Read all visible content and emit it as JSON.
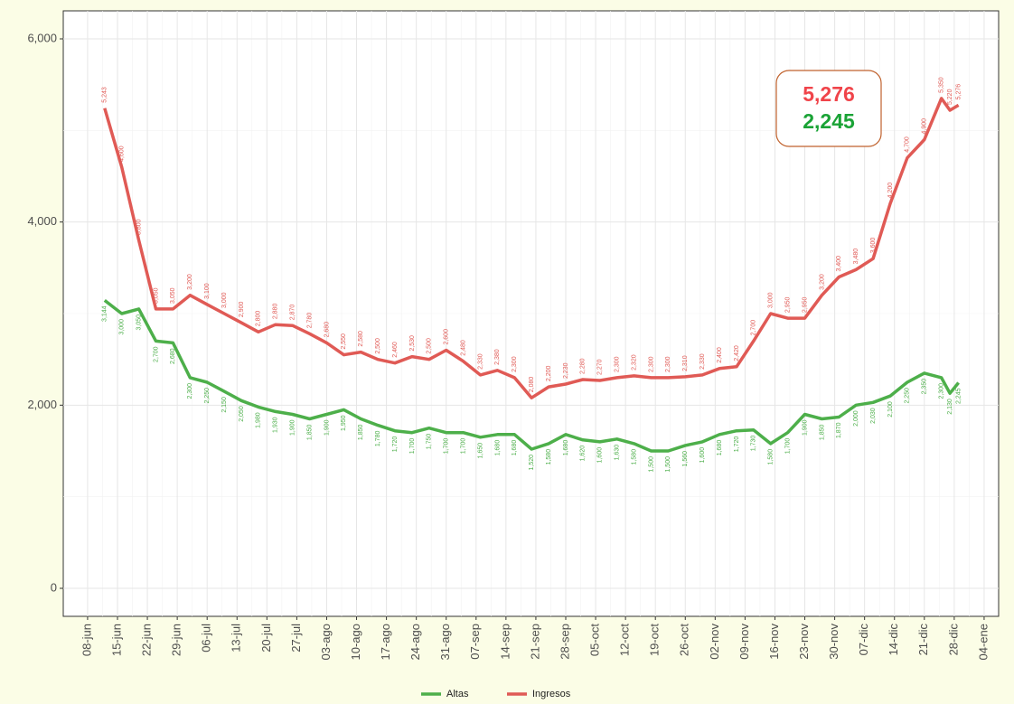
{
  "chart_data": {
    "type": "line",
    "xlim": [
      -5.7,
      213.4
    ],
    "ylim": [
      -306,
      6306
    ],
    "grid": true,
    "legend": "bottom",
    "xticks": [
      {
        "value": 0,
        "label": "08-jun"
      },
      {
        "value": 7,
        "label": "15-jun"
      },
      {
        "value": 14,
        "label": "22-jun"
      },
      {
        "value": 21,
        "label": "29-jun"
      },
      {
        "value": 28,
        "label": "06-jul"
      },
      {
        "value": 35,
        "label": "13-jul"
      },
      {
        "value": 42,
        "label": "20-jul"
      },
      {
        "value": 49,
        "label": "27-jul"
      },
      {
        "value": 56,
        "label": "03-ago"
      },
      {
        "value": 63,
        "label": "10-ago"
      },
      {
        "value": 70,
        "label": "17-ago"
      },
      {
        "value": 77,
        "label": "24-ago"
      },
      {
        "value": 84,
        "label": "31-ago"
      },
      {
        "value": 91,
        "label": "07-sep"
      },
      {
        "value": 98,
        "label": "14-sep"
      },
      {
        "value": 105,
        "label": "21-sep"
      },
      {
        "value": 112,
        "label": "28-sep"
      },
      {
        "value": 119,
        "label": "05-oct"
      },
      {
        "value": 126,
        "label": "12-oct"
      },
      {
        "value": 133,
        "label": "19-oct"
      },
      {
        "value": 140,
        "label": "26-oct"
      },
      {
        "value": 147,
        "label": "02-nov"
      },
      {
        "value": 154,
        "label": "09-nov"
      },
      {
        "value": 161,
        "label": "16-nov"
      },
      {
        "value": 168,
        "label": "23-nov"
      },
      {
        "value": 175,
        "label": "30-nov"
      },
      {
        "value": 182,
        "label": "07-dic"
      },
      {
        "value": 189,
        "label": "14-dic"
      },
      {
        "value": 196,
        "label": "21-dic"
      },
      {
        "value": 203,
        "label": "28-dic"
      },
      {
        "value": 210,
        "label": "04-ene"
      }
    ],
    "yticks": [
      0,
      {
        "value": 2000,
        "label": "2,000"
      },
      {
        "value": 4000,
        "label": "4,000"
      },
      {
        "value": 6000,
        "label": "6,000"
      }
    ],
    "x": [
      4,
      8,
      12,
      16,
      20,
      24,
      28,
      32,
      36,
      40,
      44,
      48,
      52,
      56,
      60,
      64,
      68,
      72,
      76,
      80,
      84,
      88,
      92,
      96,
      100,
      104,
      108,
      112,
      116,
      120,
      124,
      128,
      132,
      136,
      140,
      144,
      148,
      152,
      156,
      160,
      164,
      168,
      172,
      176,
      180,
      184,
      188,
      192,
      196,
      200,
      202,
      204
    ],
    "series": [
      {
        "name": "Altas",
        "color": "#4daf4a",
        "values": [
          3144,
          3000,
          3050,
          2700,
          2680,
          2300,
          2250,
          2150,
          2050,
          1980,
          1930,
          1900,
          1850,
          1900,
          1950,
          1850,
          1780,
          1720,
          1700,
          1750,
          1700,
          1700,
          1650,
          1680,
          1680,
          1520,
          1580,
          1680,
          1620,
          1600,
          1630,
          1580,
          1500,
          1500,
          1560,
          1600,
          1680,
          1720,
          1730,
          1580,
          1700,
          1900,
          1850,
          1870,
          2000,
          2030,
          2100,
          2250,
          2350,
          2300,
          2130,
          2245
        ],
        "value_labels": [
          "3,144",
          "3,000",
          "3,050",
          "2,700",
          "2,680",
          "2,300",
          "2,250",
          "2,150",
          "2,050",
          "1,980",
          "1,930",
          "1,900",
          "1,850",
          "1,900",
          "1,950",
          "1,850",
          "1,780",
          "1,720",
          "1,700",
          "1,750",
          "1,700",
          "1,700",
          "1,650",
          "1,680",
          "1,680",
          "1,520",
          "1,580",
          "1,680",
          "1,620",
          "1,600",
          "1,630",
          "1,580",
          "1,500",
          "1,500",
          "1,560",
          "1,600",
          "1,680",
          "1,720",
          "1,730",
          "1,580",
          "1,700",
          "1,900",
          "1,850",
          "1,870",
          "2,000",
          "2,030",
          "2,100",
          "2,250",
          "2,350",
          "2,300",
          "2,130",
          "2,245"
        ]
      },
      {
        "name": "Ingresos",
        "color": "#e05a55",
        "values": [
          5243,
          4600,
          3800,
          3050,
          3050,
          3200,
          3100,
          3000,
          2900,
          2800,
          2880,
          2870,
          2780,
          2680,
          2550,
          2580,
          2500,
          2460,
          2530,
          2500,
          2600,
          2480,
          2330,
          2380,
          2300,
          2080,
          2200,
          2230,
          2280,
          2270,
          2300,
          2320,
          2300,
          2300,
          2310,
          2330,
          2400,
          2420,
          2700,
          3000,
          2950,
          2950,
          3200,
          3400,
          3480,
          3600,
          4200,
          4700,
          4900,
          5350,
          5220,
          5276
        ],
        "value_labels": [
          "5,243",
          "4,600",
          "3,800",
          "3,050",
          "3,050",
          "3,200",
          "3,100",
          "3,000",
          "2,900",
          "2,800",
          "2,880",
          "2,870",
          "2,780",
          "2,680",
          "2,550",
          "2,580",
          "2,500",
          "2,460",
          "2,530",
          "2,500",
          "2,600",
          "2,480",
          "2,330",
          "2,380",
          "2,300",
          "2,080",
          "2,200",
          "2,230",
          "2,280",
          "2,270",
          "2,300",
          "2,320",
          "2,300",
          "2,300",
          "2,310",
          "2,330",
          "2,400",
          "2,420",
          "2,700",
          "3,000",
          "2,950",
          "2,950",
          "3,200",
          "3,400",
          "3,480",
          "3,600",
          "4,200",
          "4,700",
          "4,900",
          "5,350",
          "5,220",
          "5,276"
        ]
      }
    ],
    "annotation": {
      "ingresos": "5,276",
      "altas": "2,245"
    }
  }
}
